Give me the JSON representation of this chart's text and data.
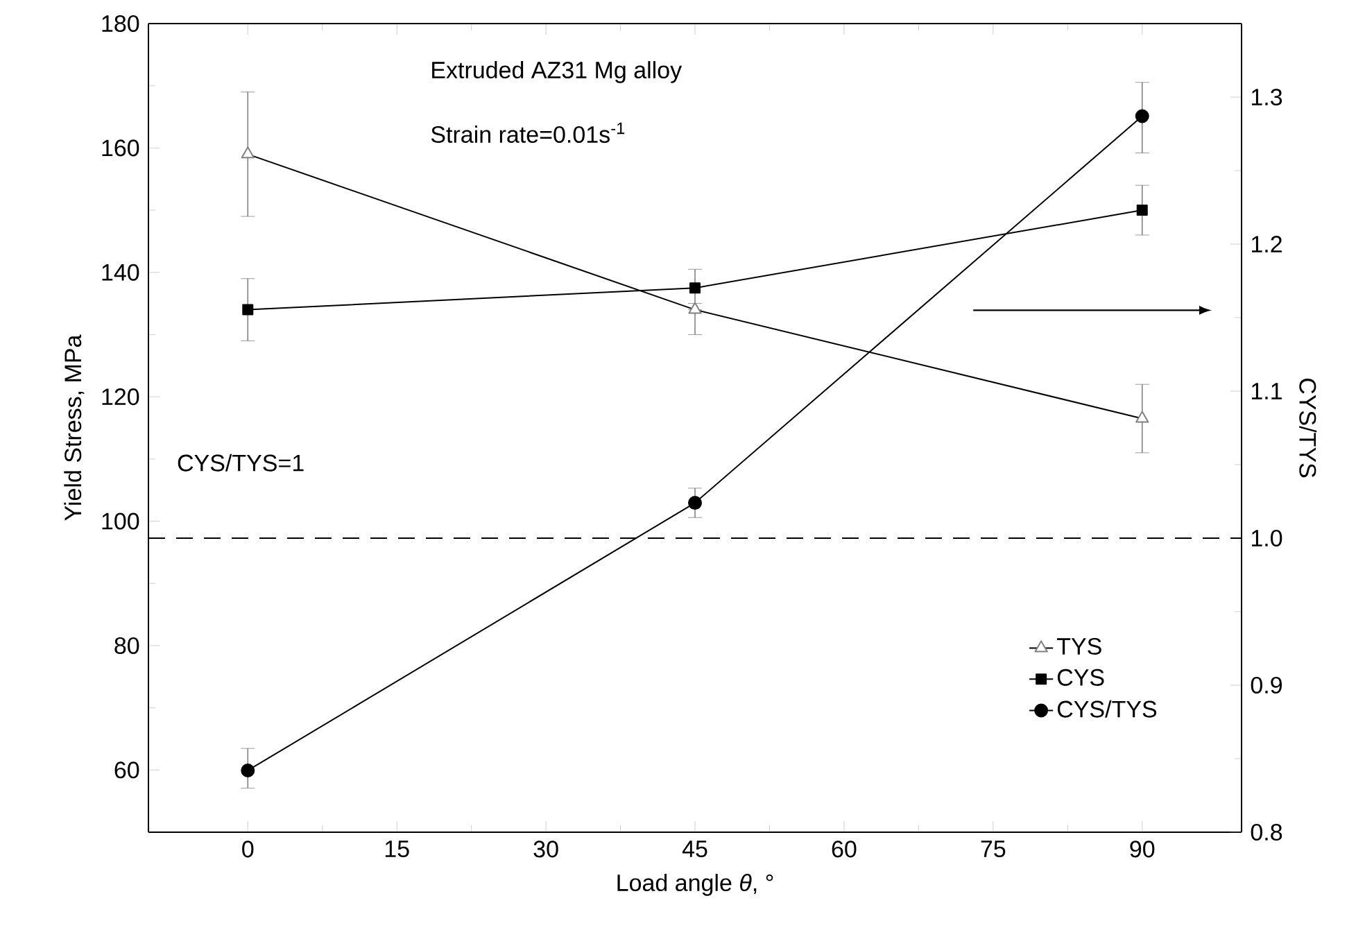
{
  "chart_data": {
    "type": "line",
    "xlabel": "Load angle *θ*, °",
    "ylabel": "Yield Stress, MPa",
    "y2label": "CYS/TYS",
    "x": [
      0,
      45,
      90
    ],
    "xlim": [
      -10,
      100
    ],
    "xticks": [
      0,
      15,
      30,
      45,
      60,
      75,
      90
    ],
    "ylim": [
      50,
      180
    ],
    "yticks": [
      60,
      80,
      100,
      120,
      140,
      160,
      180
    ],
    "y2lim": [
      0.8,
      1.35
    ],
    "y2ticks": [
      0.8,
      0.9,
      {
        "value": 1.0,
        "label": "1.0"
      },
      1.1,
      1.2,
      1.3
    ],
    "series": [
      {
        "name": "TYS",
        "color": "#000000",
        "marker": "triangle",
        "values": [
          159,
          134,
          116.5
        ],
        "errors": [
          [
            149,
            169
          ],
          [
            130,
            134
          ],
          [
            111,
            122
          ]
        ]
      },
      {
        "name": "CYS",
        "color": "#000000",
        "marker": "square",
        "values": [
          134,
          137.5,
          150
        ],
        "errors": [
          [
            129,
            139
          ],
          [
            135,
            140.5
          ],
          [
            146,
            154
          ]
        ]
      },
      {
        "name": "CYS/TYS",
        "color": "#000000",
        "marker": "circle",
        "axis": "y2",
        "values": [
          0.842,
          1.024,
          1.287
        ],
        "errors": [
          [
            0.83,
            0.857
          ],
          [
            1.014,
            1.034
          ],
          [
            1.262,
            1.31
          ]
        ]
      }
    ],
    "ref_lines": [
      {
        "axis": "y2",
        "value": 1.0,
        "label": "CYS/TYS=1",
        "line_style": "dashed",
        "color": "#000000"
      }
    ],
    "annotations": [
      "Extruded AZ31 Mg alloy",
      "Strain rate=0.01s$^{-1}$"
    ],
    "legend": "bottom right",
    "grid": false,
    "line_style": "solid"
  }
}
